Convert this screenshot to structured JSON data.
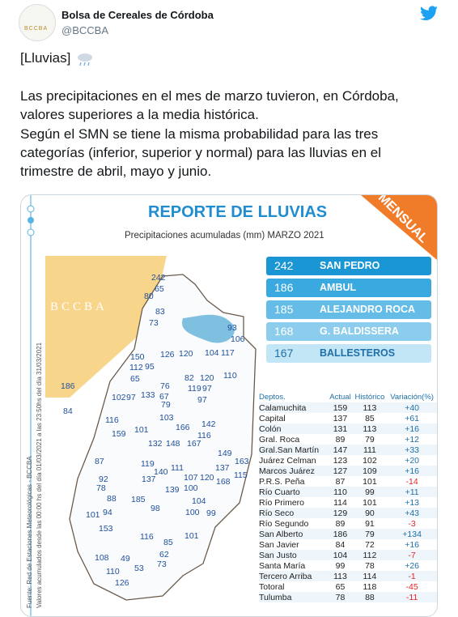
{
  "header": {
    "name": "Bolsa de Cereales de Córdoba",
    "handle": "@BCCBA",
    "avatar_text": "BCCBA"
  },
  "tweet": {
    "lines": [
      "[Lluvias]",
      "Las precipitaciones en el mes de marzo tuvieron, en Córdoba,",
      "valores superiores a la media histórica.",
      "Según el SMN se tiene la misma probabilidad para las tres",
      "categorías (inferior, superior y normal) para las lluvias en el",
      "trimestre de abril, mayo y junio."
    ]
  },
  "infographic": {
    "title": "REPORTE DE LLUVIAS",
    "subtitle": "Precipitaciones acumuladas (mm) MARZO 2021",
    "badge": "MENSUAL",
    "logo": "BCCBA",
    "source": "Fuente: Red de Estaciones Meteorológicas - BCCBA",
    "period": "Valores acumulados desde las 00:00 hs del día 01/03/2021 a las 23:50hs del día 31/03/2021",
    "ranking": [
      {
        "value": "242",
        "name": "SAN PEDRO"
      },
      {
        "value": "186",
        "name": "AMBUL"
      },
      {
        "value": "185",
        "name": "ALEJANDRO ROCA"
      },
      {
        "value": "168",
        "name": "G. BALDISSERA"
      },
      {
        "value": "167",
        "name": "BALLESTEROS"
      }
    ],
    "map_values": [
      "242",
      "65",
      "80",
      "83",
      "73",
      "93",
      "106",
      "104",
      "117",
      "120",
      "126",
      "150",
      "112",
      "95",
      "65",
      "186",
      "84",
      "102",
      "97",
      "133",
      "76",
      "67",
      "79",
      "82",
      "120",
      "119",
      "97",
      "110",
      "97",
      "116",
      "159",
      "101",
      "103",
      "166",
      "142",
      "132",
      "148",
      "167",
      "116",
      "149",
      "163",
      "87",
      "119",
      "140",
      "111",
      "137",
      "115",
      "92",
      "137",
      "107",
      "120",
      "168",
      "78",
      "88",
      "185",
      "139",
      "100",
      "101",
      "94",
      "98",
      "104",
      "100",
      "99",
      "153",
      "116",
      "85",
      "101",
      "62",
      "108",
      "49",
      "73",
      "53",
      "110",
      "126"
    ],
    "table": {
      "headers": [
        "Deptos.",
        "Actual",
        "Histórico",
        "Variación(%)"
      ],
      "rows": [
        [
          "Calamuchita",
          "159",
          "113",
          "+40"
        ],
        [
          "Capital",
          "137",
          "85",
          "+61"
        ],
        [
          "Colón",
          "131",
          "113",
          "+16"
        ],
        [
          "Gral. Roca",
          "89",
          "79",
          "+12"
        ],
        [
          "Gral.San Martín",
          "147",
          "111",
          "+33"
        ],
        [
          "Juárez Celman",
          "123",
          "102",
          "+20"
        ],
        [
          "Marcos Juárez",
          "127",
          "109",
          "+16"
        ],
        [
          "P.R.S. Peña",
          "87",
          "101",
          "-14"
        ],
        [
          "Río Cuarto",
          "110",
          "99",
          "+11"
        ],
        [
          "Río Primero",
          "114",
          "101",
          "+13"
        ],
        [
          "Río Seco",
          "129",
          "90",
          "+43"
        ],
        [
          "Río Segundo",
          "89",
          "91",
          "-3"
        ],
        [
          "San Alberto",
          "186",
          "79",
          "+134"
        ],
        [
          "San Javier",
          "84",
          "72",
          "+16"
        ],
        [
          "San Justo",
          "104",
          "112",
          "-7"
        ],
        [
          "Santa María",
          "99",
          "78",
          "+26"
        ],
        [
          "Tercero Arriba",
          "113",
          "114",
          "-1"
        ],
        [
          "Totoral",
          "65",
          "118",
          "-45"
        ],
        [
          "Tulumba",
          "78",
          "88",
          "-11"
        ]
      ]
    }
  }
}
